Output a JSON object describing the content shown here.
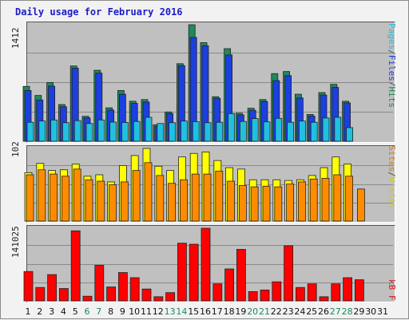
{
  "title": "Daily usage for February 2016",
  "legend": {
    "top": [
      {
        "text": "Pages",
        "color": "#20c0e0"
      },
      {
        "text": "/",
        "color": "#555555"
      },
      {
        "text": "Files",
        "color": "#1c3fe0"
      },
      {
        "text": "/",
        "color": "#555555"
      },
      {
        "text": "Hits",
        "color": "#1e8a5a"
      }
    ],
    "middle": [
      {
        "text": "Sites",
        "color": "#e07818"
      },
      {
        "text": "/",
        "color": "#555555"
      },
      {
        "text": "Visits",
        "color": "#d0d000"
      }
    ],
    "bottom": [
      {
        "text": "kB F",
        "color": "#e01818"
      }
    ]
  },
  "chart_data": {
    "type": "bar",
    "title": "Daily usage for February 2016",
    "days": [
      "1",
      "2",
      "3",
      "4",
      "5",
      "6",
      "7",
      "8",
      "9",
      "10",
      "11",
      "12",
      "13",
      "14",
      "15",
      "16",
      "17",
      "18",
      "19",
      "20",
      "21",
      "22",
      "23",
      "24",
      "25",
      "26",
      "27",
      "28",
      "29",
      "30",
      "31"
    ],
    "weekend_days": [
      6,
      7,
      13,
      14,
      20,
      21,
      27,
      28
    ],
    "panels": [
      {
        "name": "hits-files-pages",
        "ymax": 1412,
        "ymax_label": "1412",
        "series": [
          {
            "name": "Hits",
            "color": "#1e8a5a",
            "values": [
              665,
              555,
              712,
              445,
              912,
              302,
              860,
              405,
              615,
              485,
              505,
              200,
              355,
              940,
              1412,
              1195,
              540,
              1122,
              340,
              400,
              505,
              820,
              845,
              570,
              325,
              590,
              690,
              485,
              0,
              0,
              0
            ]
          },
          {
            "name": "Files",
            "color": "#1c3fe0",
            "values": [
              615,
              500,
              668,
              418,
              886,
              283,
              826,
              378,
              570,
              459,
              475,
              180,
              337,
              916,
              1258,
              1158,
              521,
              1046,
              320,
              375,
              482,
              735,
              795,
              525,
              305,
              560,
              652,
              465,
              0,
              0,
              0
            ]
          },
          {
            "name": "Pages",
            "color": "#20c0e0",
            "values": [
              230,
              245,
              258,
              225,
              250,
              215,
              258,
              232,
              228,
              240,
              290,
              215,
              225,
              245,
              238,
              225,
              230,
              335,
              240,
              275,
              235,
              278,
              230,
              245,
              230,
              282,
              290,
              165,
              0,
              0,
              0
            ]
          }
        ]
      },
      {
        "name": "visits-sites",
        "ymax": 102,
        "ymax_label": "102",
        "series": [
          {
            "name": "Visits",
            "color": "#ffff00",
            "values": [
              68,
              81,
              71,
              72,
              80,
              63,
              65,
              55,
              78,
              92,
              102,
              77,
              71,
              90,
              95,
              97,
              85,
              75,
              73,
              58,
              58,
              58,
              57,
              58,
              64,
              75,
              90,
              80,
              0,
              0,
              0
            ]
          },
          {
            "name": "Sites",
            "color": "#ff8c00",
            "values": [
              65,
              72,
              66,
              63,
              73,
              58,
              56,
              51,
              55,
              71,
              82,
              64,
              53,
              58,
              66,
              66,
              70,
              56,
              50,
              48,
              49,
              48,
              52,
              55,
              59,
              60,
              65,
              63,
              45,
              0,
              0
            ]
          }
        ]
      },
      {
        "name": "kbytes",
        "ymax": 141025,
        "ymax_label": "141025",
        "series": [
          {
            "name": "kB F",
            "color": "#ff0000",
            "values": [
              57000,
              26000,
              51000,
              24000,
              136000,
              9000,
              69000,
              27000,
              55000,
              45000,
              23000,
              8000,
              16000,
              112000,
              110000,
              141025,
              33000,
              62000,
              100000,
              18000,
              21000,
              37000,
              107000,
              26000,
              33000,
              8000,
              33000,
              45000,
              41000,
              0,
              0
            ]
          }
        ]
      }
    ]
  }
}
